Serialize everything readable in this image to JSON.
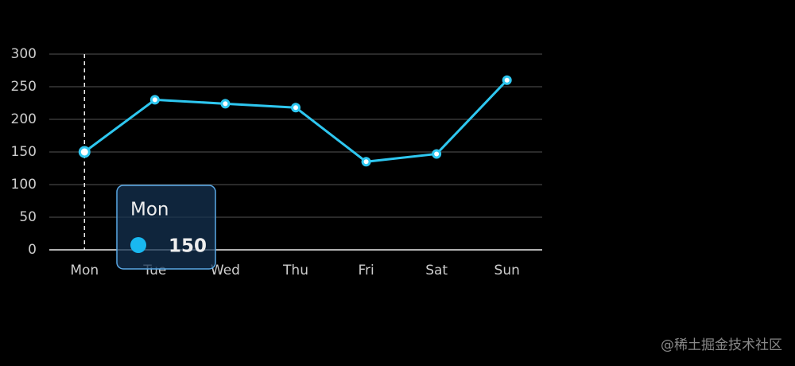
{
  "chart_data": {
    "type": "line",
    "categories": [
      "Mon",
      "Tue",
      "Wed",
      "Thu",
      "Fri",
      "Sat",
      "Sun"
    ],
    "values": [
      150,
      230,
      224,
      218,
      135,
      147,
      260
    ],
    "color": "#2ec7f0",
    "ylim": [
      0,
      300
    ],
    "yticks": [
      0,
      50,
      100,
      150,
      200,
      250,
      300
    ],
    "grid": true,
    "tooltip_index": 0
  },
  "watermark": "@稀土掘金技术社区"
}
